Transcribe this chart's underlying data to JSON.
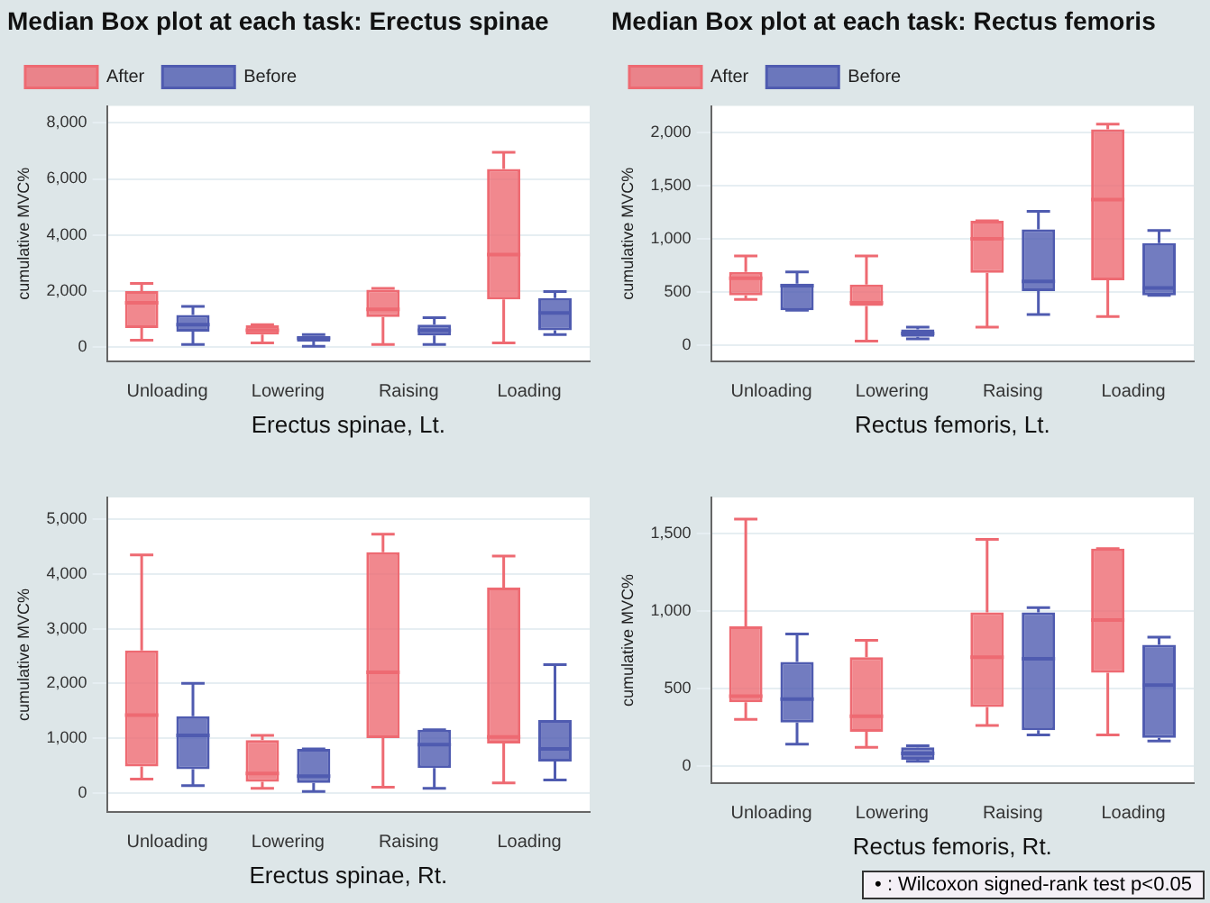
{
  "chart_data": [
    {
      "type": "box",
      "title": "Median Box plot at each task: Erectus spinae",
      "xlabel": "Erectus spinae, Lt.",
      "ylabel": "cumulative MVC%",
      "categories": [
        "Unloading",
        "Lowering",
        "Raising",
        "Loading"
      ],
      "ylim": [
        -500,
        8600
      ],
      "yticks": [
        {
          "value": 0,
          "label": "0"
        },
        {
          "value": 2000,
          "label": "2,000"
        },
        {
          "value": 4000,
          "label": "4,000"
        },
        {
          "value": 6000,
          "label": "6,000"
        },
        {
          "value": 8000,
          "label": "8,000"
        }
      ],
      "grid": "y",
      "legend": "top left",
      "series": [
        {
          "name": "After",
          "color": "#ee6a72",
          "boxes": [
            {
              "low": 250,
              "q1": 680,
              "median": 1580,
              "q3": 2000,
              "high": 2270
            },
            {
              "low": 150,
              "q1": 450,
              "median": 600,
              "q3": 780,
              "high": 800
            },
            {
              "low": 100,
              "q1": 1080,
              "median": 1350,
              "q3": 2050,
              "high": 2100
            },
            {
              "low": 150,
              "q1": 1700,
              "median": 3300,
              "q3": 6350,
              "high": 6950
            }
          ]
        },
        {
          "name": "Before",
          "color": "#4f5bb0",
          "boxes": [
            {
              "low": 100,
              "q1": 550,
              "median": 800,
              "q3": 1150,
              "high": 1450
            },
            {
              "low": 30,
              "q1": 200,
              "median": 320,
              "q3": 400,
              "high": 450
            },
            {
              "low": 100,
              "q1": 420,
              "median": 600,
              "q3": 800,
              "high": 1050
            },
            {
              "low": 450,
              "q1": 600,
              "median": 1220,
              "q3": 1750,
              "high": 1980
            }
          ]
        }
      ]
    },
    {
      "type": "box",
      "title": "Median Box plot at each task: Rectus femoris",
      "xlabel": "Rectus femoris, Lt.",
      "ylabel": "cumulative MVC%",
      "categories": [
        "Unloading",
        "Lowering",
        "Raising",
        "Loading"
      ],
      "ylim": [
        -150,
        2250
      ],
      "yticks": [
        {
          "value": 0,
          "label": "0"
        },
        {
          "value": 500,
          "label": "500"
        },
        {
          "value": 1000,
          "label": "1,000"
        },
        {
          "value": 1500,
          "label": "1,500"
        },
        {
          "value": 2000,
          "label": "2,000"
        }
      ],
      "grid": "y",
      "legend": "top left",
      "series": [
        {
          "name": "After",
          "color": "#ee6a72",
          "boxes": [
            {
              "low": 430,
              "q1": 470,
              "median": 630,
              "q3": 690,
              "high": 840
            },
            {
              "low": 40,
              "q1": 370,
              "median": 400,
              "q3": 570,
              "high": 840
            },
            {
              "low": 170,
              "q1": 680,
              "median": 1000,
              "q3": 1170,
              "high": 1170
            },
            {
              "low": 270,
              "q1": 610,
              "median": 1370,
              "q3": 2030,
              "high": 2080
            }
          ]
        },
        {
          "name": "Before",
          "color": "#4f5bb0",
          "boxes": [
            {
              "low": 330,
              "q1": 330,
              "median": 560,
              "q3": 580,
              "high": 690
            },
            {
              "low": 60,
              "q1": 80,
              "median": 110,
              "q3": 150,
              "high": 170
            },
            {
              "low": 290,
              "q1": 510,
              "median": 600,
              "q3": 1090,
              "high": 1260
            },
            {
              "low": 470,
              "q1": 470,
              "median": 540,
              "q3": 960,
              "high": 1080
            }
          ]
        }
      ]
    },
    {
      "type": "box",
      "xlabel": "Erectus spinae, Rt.",
      "ylabel": "cumulative MVC%",
      "categories": [
        "Unloading",
        "Lowering",
        "Raising",
        "Loading"
      ],
      "ylim": [
        -350,
        5400
      ],
      "yticks": [
        {
          "value": 0,
          "label": "0"
        },
        {
          "value": 1000,
          "label": "1,000"
        },
        {
          "value": 2000,
          "label": "2,000"
        },
        {
          "value": 3000,
          "label": "3,000"
        },
        {
          "value": 4000,
          "label": "4,000"
        },
        {
          "value": 5000,
          "label": "5,000"
        }
      ],
      "grid": "y",
      "series": [
        {
          "color": "#ee6a72",
          "boxes": [
            {
              "low": 250,
              "q1": 480,
              "median": 1420,
              "q3": 2600,
              "high": 4350
            },
            {
              "low": 80,
              "q1": 200,
              "median": 350,
              "q3": 960,
              "high": 1050
            },
            {
              "low": 100,
              "q1": 1000,
              "median": 2200,
              "q3": 4400,
              "high": 4730
            },
            {
              "low": 180,
              "q1": 900,
              "median": 1020,
              "q3": 3750,
              "high": 4330
            }
          ]
        },
        {
          "color": "#4f5bb0",
          "boxes": [
            {
              "low": 130,
              "q1": 430,
              "median": 1050,
              "q3": 1400,
              "high": 2000
            },
            {
              "low": 20,
              "q1": 180,
              "median": 300,
              "q3": 800,
              "high": 800
            },
            {
              "low": 80,
              "q1": 450,
              "median": 880,
              "q3": 1150,
              "high": 1150
            },
            {
              "low": 230,
              "q1": 570,
              "median": 800,
              "q3": 1330,
              "high": 2340
            }
          ]
        }
      ]
    },
    {
      "type": "box",
      "xlabel": "Rectus femoris, Rt.",
      "ylabel": "cumulative MVC%",
      "categories": [
        "Unloading",
        "Lowering",
        "Raising",
        "Loading"
      ],
      "ylim": [
        -110,
        1730
      ],
      "yticks": [
        {
          "value": 0,
          "label": "0"
        },
        {
          "value": 500,
          "label": "500"
        },
        {
          "value": 1000,
          "label": "1,000"
        },
        {
          "value": 1500,
          "label": "1,500"
        }
      ],
      "grid": "y",
      "annotations": [
        "• : Wilcoxon signed-rank test p<0.05"
      ],
      "series": [
        {
          "color": "#ee6a72",
          "boxes": [
            {
              "low": 300,
              "q1": 410,
              "median": 450,
              "q3": 900,
              "high": 1590
            },
            {
              "low": 120,
              "q1": 220,
              "median": 320,
              "q3": 700,
              "high": 810
            },
            {
              "low": 260,
              "q1": 380,
              "median": 700,
              "q3": 990,
              "high": 1460
            },
            {
              "low": 200,
              "q1": 600,
              "median": 940,
              "q3": 1400,
              "high": 1400
            }
          ]
        },
        {
          "color": "#4f5bb0",
          "boxes": [
            {
              "low": 140,
              "q1": 280,
              "median": 430,
              "q3": 670,
              "high": 850
            },
            {
              "low": 30,
              "q1": 40,
              "median": 80,
              "q3": 120,
              "high": 130
            },
            {
              "low": 200,
              "q1": 230,
              "median": 690,
              "q3": 990,
              "high": 1020
            },
            {
              "low": 160,
              "q1": 180,
              "median": 520,
              "q3": 780,
              "high": 830
            }
          ]
        }
      ]
    }
  ]
}
